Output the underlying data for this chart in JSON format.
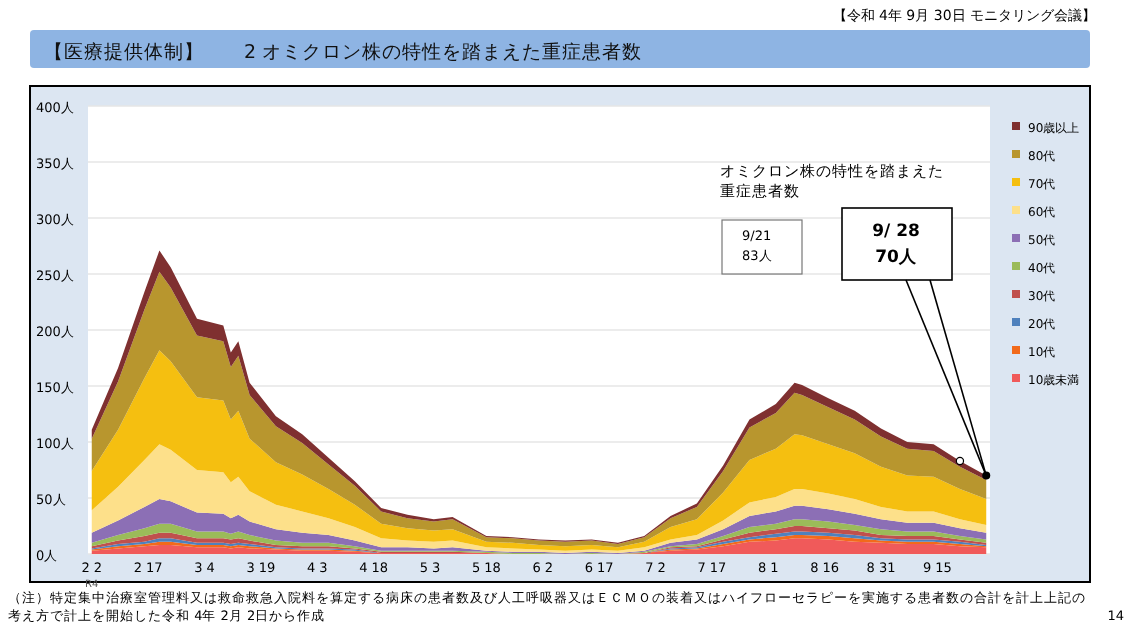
{
  "chart_data": {
    "type": "area",
    "stacked": true,
    "title": "【医療提供体制】　　2 オミクロン株の特性を踏まえた重症患者数",
    "x": [
      "--02-02",
      "--02-09",
      "--02-16",
      "--02-20",
      "--02-23",
      "--03-02",
      "--03-09",
      "--03-11",
      "--03-13",
      "--03-16",
      "--03-23",
      "--03-30",
      "--04-06",
      "--04-13",
      "--04-20",
      "--04-27",
      "--05-04",
      "--05-09",
      "--05-18",
      "--05-25",
      "--06-01",
      "--06-08",
      "--06-15",
      "--06-22",
      "--06-29",
      "--07-06",
      "--07-13",
      "--07-20",
      "--07-27",
      "--08-03",
      "--08-08",
      "--08-10",
      "--08-17",
      "--08-24",
      "--08-31",
      "--09-07",
      "--09-14",
      "--09-21",
      "--09-28"
    ],
    "series": [
      {
        "name": "10歳未満",
        "color": "#f05a5a",
        "values": [
          3,
          5,
          7,
          8,
          8,
          6,
          6,
          5,
          6,
          5,
          4,
          3,
          3,
          2,
          1,
          1,
          1,
          1,
          1,
          0,
          0,
          0,
          0,
          0,
          1,
          3,
          4,
          7,
          11,
          12,
          14,
          14,
          13,
          11,
          10,
          9,
          9,
          7,
          6
        ]
      },
      {
        "name": "10代",
        "color": "#f26a1b",
        "values": [
          1,
          2,
          2,
          3,
          3,
          2,
          2,
          2,
          2,
          2,
          1,
          1,
          1,
          1,
          0,
          0,
          0,
          0,
          0,
          0,
          0,
          0,
          0,
          0,
          0,
          1,
          1,
          2,
          2,
          3,
          3,
          3,
          3,
          3,
          2,
          2,
          2,
          2,
          1
        ]
      },
      {
        "name": "20代",
        "color": "#4f81bd",
        "values": [
          1,
          2,
          2,
          3,
          3,
          2,
          2,
          2,
          2,
          2,
          1,
          1,
          1,
          1,
          0,
          0,
          0,
          0,
          0,
          0,
          0,
          0,
          0,
          0,
          0,
          1,
          1,
          2,
          2,
          3,
          3,
          3,
          3,
          3,
          2,
          2,
          2,
          2,
          1
        ]
      },
      {
        "name": "30代",
        "color": "#c0504d",
        "values": [
          2,
          3,
          5,
          5,
          5,
          4,
          4,
          4,
          4,
          3,
          2,
          2,
          2,
          1,
          1,
          1,
          1,
          1,
          0,
          0,
          0,
          0,
          0,
          0,
          0,
          1,
          1,
          2,
          4,
          4,
          5,
          5,
          4,
          4,
          3,
          3,
          3,
          2,
          2
        ]
      },
      {
        "name": "40代",
        "color": "#9bbb59",
        "values": [
          3,
          5,
          7,
          8,
          8,
          6,
          6,
          5,
          6,
          5,
          4,
          3,
          3,
          2,
          1,
          1,
          1,
          1,
          1,
          1,
          1,
          0,
          1,
          0,
          1,
          1,
          2,
          3,
          5,
          5,
          6,
          6,
          6,
          5,
          5,
          4,
          4,
          3,
          3
        ]
      },
      {
        "name": "50代",
        "color": "#8c6fb5",
        "values": [
          9,
          13,
          19,
          22,
          20,
          17,
          16,
          14,
          15,
          12,
          10,
          9,
          7,
          5,
          3,
          3,
          2,
          3,
          1,
          1,
          1,
          1,
          1,
          1,
          1,
          3,
          4,
          6,
          10,
          11,
          12,
          12,
          11,
          10,
          9,
          8,
          8,
          7,
          6
        ]
      },
      {
        "name": "60代",
        "color": "#fde08a",
        "values": [
          20,
          30,
          42,
          49,
          46,
          38,
          37,
          32,
          34,
          27,
          22,
          19,
          15,
          12,
          8,
          6,
          6,
          6,
          3,
          3,
          2,
          2,
          2,
          2,
          3,
          3,
          4,
          8,
          12,
          13,
          15,
          15,
          14,
          13,
          11,
          10,
          10,
          8,
          7
        ]
      },
      {
        "name": "70代",
        "color": "#f5bf10",
        "values": [
          35,
          51,
          73,
          84,
          79,
          65,
          64,
          56,
          59,
          47,
          38,
          33,
          26,
          20,
          13,
          11,
          10,
          10,
          5,
          5,
          4,
          4,
          4,
          3,
          5,
          11,
          14,
          25,
          38,
          43,
          49,
          48,
          44,
          41,
          36,
          32,
          31,
          27,
          23
        ]
      },
      {
        "name": "80代",
        "color": "#b8962e",
        "values": [
          29,
          43,
          61,
          70,
          66,
          55,
          53,
          47,
          49,
          39,
          32,
          28,
          22,
          17,
          11,
          9,
          8,
          9,
          4,
          4,
          4,
          4,
          4,
          3,
          4,
          8,
          11,
          19,
          29,
          32,
          37,
          36,
          33,
          30,
          27,
          24,
          23,
          20,
          17
        ]
      },
      {
        "name": "90歳以上",
        "color": "#7f3030",
        "values": [
          8,
          12,
          16,
          19,
          18,
          15,
          14,
          13,
          13,
          11,
          9,
          8,
          6,
          4,
          3,
          3,
          2,
          2,
          1,
          1,
          1,
          1,
          1,
          1,
          1,
          2,
          3,
          5,
          7,
          8,
          9,
          9,
          8,
          8,
          7,
          6,
          6,
          5,
          4
        ]
      }
    ],
    "xlim": [
      "--02-01",
      "--09-29"
    ],
    "xticks": [
      {
        "value": "--02-02",
        "label": "2 2"
      },
      {
        "value": "--02-17",
        "label": "2 17"
      },
      {
        "value": "--03-04",
        "label": "3 4"
      },
      {
        "value": "--03-19",
        "label": "3 19"
      },
      {
        "value": "--04-03",
        "label": "4 3"
      },
      {
        "value": "--04-18",
        "label": "4 18"
      },
      {
        "value": "--05-03",
        "label": "5 3"
      },
      {
        "value": "--05-18",
        "label": "5 18"
      },
      {
        "value": "--06-02",
        "label": "6 2"
      },
      {
        "value": "--06-17",
        "label": "6 17"
      },
      {
        "value": "--07-02",
        "label": "7 2"
      },
      {
        "value": "--07-17",
        "label": "7 17"
      },
      {
        "value": "--08-01",
        "label": "8 1"
      },
      {
        "value": "--08-16",
        "label": "8 16"
      },
      {
        "value": "--08-31",
        "label": "8 31"
      },
      {
        "value": "--09-15",
        "label": "9 15"
      }
    ],
    "ylim": [
      0,
      400
    ],
    "yticks": [
      {
        "value": 0,
        "label": "0人"
      },
      {
        "value": 50,
        "label": "50人"
      },
      {
        "value": 100,
        "label": "100人"
      },
      {
        "value": 150,
        "label": "150人"
      },
      {
        "value": 200,
        "label": "200人"
      },
      {
        "value": 250,
        "label": "250人"
      },
      {
        "value": 300,
        "label": "300人"
      },
      {
        "value": 350,
        "label": "350人"
      },
      {
        "value": 400,
        "label": "400人"
      }
    ],
    "grid": "y",
    "legend": "right",
    "annotations": [
      "【令和 4年 9月 30日 モニタリング会議】",
      "R4",
      "オミクロン株の特性を踏まえた重症患者数",
      "9/21 83人",
      {
        "text": "9/ 28 70人",
        "x": "--09-28",
        "y": 70
      },
      "（注）特定集中治療室管理料又は救命救急入院料を算定する病床の患者数及び人工呼吸器又はＥＣＭＯの装着又はハイフローセラピーを実施する患者数の合計を計上上記の考え方で計上を開始した令和 4年 2月 2日から作成",
      "14"
    ]
  }
}
